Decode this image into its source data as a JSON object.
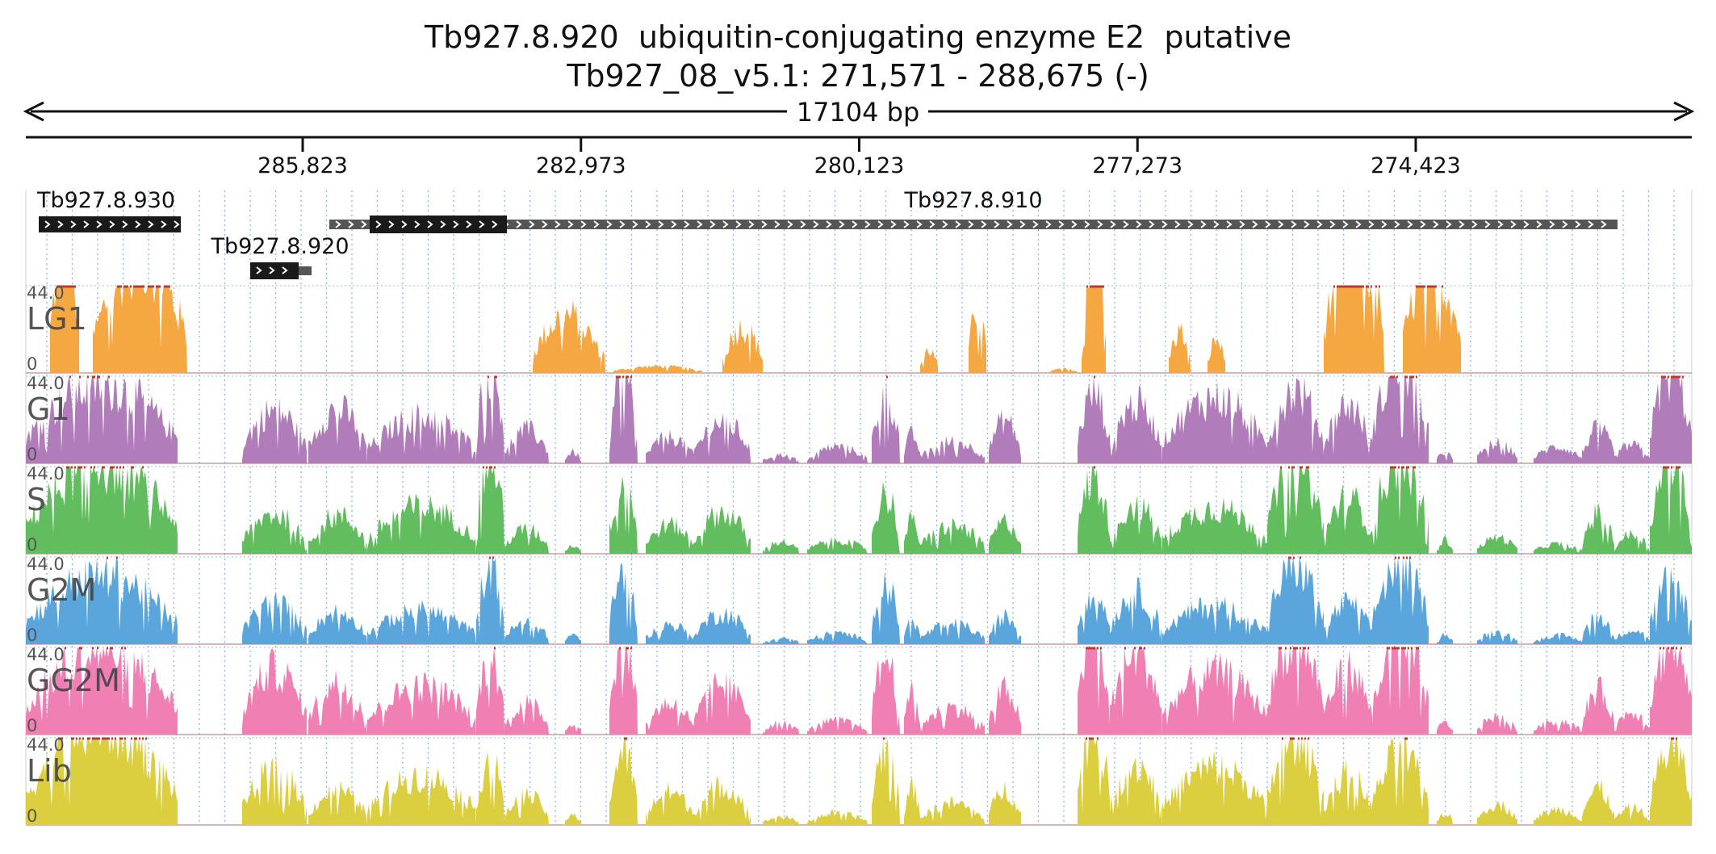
{
  "header": {
    "title": "Tb927.8.920  ubiquitin-conjugating enzyme E2  putative",
    "location": "Tb927_08_v5.1: 271,571 - 288,675 (-)"
  },
  "ruler": {
    "span_label": "17104 bp",
    "tick_labels": [
      "285,823",
      "282,973",
      "280,123",
      "277,273",
      "274,423"
    ]
  },
  "chart_data": {
    "type": "area",
    "title": "Tb927.8.920  ubiquitin-conjugating enzyme E2  putative",
    "region": {
      "chromosome": "Tb927_08_v5.1",
      "start": 271571,
      "end": 288675,
      "strand": "-",
      "length_bp": 17104
    },
    "x_axis": {
      "reversed": true,
      "ticks": [
        285823,
        282973,
        280123,
        277273,
        274423
      ]
    },
    "genes": [
      {
        "name": "Tb927.8.930",
        "start": 287200,
        "end": 288640,
        "direction": "+"
      },
      {
        "name": "Tb927.8.910",
        "start": 272340,
        "end": 288200,
        "direction": "+"
      },
      {
        "name": "Tb927.8.920",
        "start": 285600,
        "end": 286500,
        "direction": "+"
      }
    ],
    "tracks": [
      {
        "name": "LG1",
        "color": "#f5a742",
        "ymax": "44.0",
        "ymin": "0"
      },
      {
        "name": "G1",
        "color": "#b07cba",
        "ymax": "44.0",
        "ymin": "0"
      },
      {
        "name": "S",
        "color": "#62bd5f",
        "ymax": "44.0",
        "ymin": "0"
      },
      {
        "name": "G2M",
        "color": "#5aa6dc",
        "ymax": "44.0",
        "ymin": "0"
      },
      {
        "name": "GG2M",
        "color": "#f07fb4",
        "ymax": "44.0",
        "ymin": "0"
      },
      {
        "name": "Lib",
        "color": "#dccf3f",
        "ymax": "44.0",
        "ymin": "0"
      }
    ],
    "clip_color": "#c0392b",
    "grid": true
  }
}
